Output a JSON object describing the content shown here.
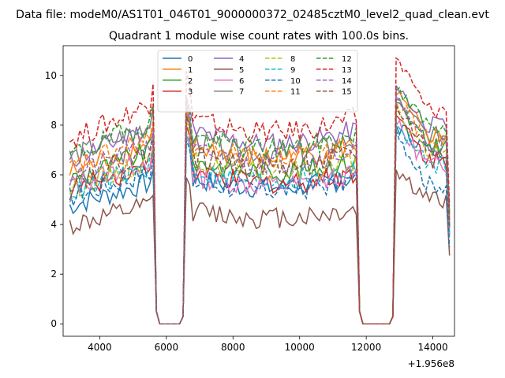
{
  "chart_data": {
    "type": "line",
    "suptitle": "Data file: modeM0/AS1T01_046T01_9000000372_02485cztM0_level2_quad_clean.evt",
    "title": "Quadrant 1 module wise count rates with 100.0s bins.",
    "xlabel": "",
    "ylabel": "",
    "x_offset_label": "+1.956e8",
    "xlim": [
      2900,
      14650
    ],
    "ylim": [
      -0.5,
      11.2
    ],
    "xticks": [
      4000,
      6000,
      8000,
      10000,
      12000,
      14000
    ],
    "xtick_labels": [
      "4000",
      "6000",
      "8000",
      "10000",
      "12000",
      "14000"
    ],
    "yticks": [
      0,
      2,
      4,
      6,
      8,
      10
    ],
    "ytick_labels": [
      "0",
      "2",
      "4",
      "6",
      "8",
      "10"
    ],
    "legend_position": "top-center",
    "legend_columns": 4,
    "x_start": 3100,
    "x_step": 100,
    "segments": [
      {
        "start": 3100,
        "end": 5600,
        "level": "on"
      },
      {
        "start": 5700,
        "end": 5700,
        "level": "drop"
      },
      {
        "start": 5800,
        "end": 6400,
        "level": "zero"
      },
      {
        "start": 6500,
        "end": 6500,
        "level": "rise"
      },
      {
        "start": 6600,
        "end": 11700,
        "level": "on"
      },
      {
        "start": 11800,
        "end": 11800,
        "level": "drop"
      },
      {
        "start": 11900,
        "end": 12700,
        "level": "zero"
      },
      {
        "start": 12800,
        "end": 12800,
        "level": "rise"
      },
      {
        "start": 12900,
        "end": 14400,
        "level": "on"
      },
      {
        "start": 14500,
        "end": 14500,
        "level": "end"
      }
    ],
    "series": [
      {
        "name": "0",
        "color": "#1f77b4",
        "dash": "solid",
        "level1": 5.4,
        "level2": 5.9,
        "level3": 7.0,
        "peak": 8.0
      },
      {
        "name": "1",
        "color": "#ff7f0e",
        "dash": "solid",
        "level1": 6.9,
        "level2": 7.2,
        "level3": 7.6,
        "peak": 9.2
      },
      {
        "name": "2",
        "color": "#2ca02c",
        "dash": "solid",
        "level1": 6.6,
        "level2": 6.6,
        "level3": 7.2,
        "peak": 8.9
      },
      {
        "name": "3",
        "color": "#d62728",
        "dash": "solid",
        "level1": 6.1,
        "level2": 6.1,
        "level3": 6.6,
        "peak": 8.4
      },
      {
        "name": "4",
        "color": "#9467bd",
        "dash": "solid",
        "level1": 7.5,
        "level2": 7.8,
        "level3": 8.0,
        "peak": 9.6
      },
      {
        "name": "5",
        "color": "#8c564b",
        "dash": "solid",
        "level1": 4.5,
        "level2": 4.6,
        "level3": 5.0,
        "peak": 6.2
      },
      {
        "name": "6",
        "color": "#e377c2",
        "dash": "solid",
        "level1": 6.3,
        "level2": 6.0,
        "level3": 6.4,
        "peak": 8.0
      },
      {
        "name": "7",
        "color": "#7f7f7f",
        "dash": "solid",
        "level1": 7.6,
        "level2": 7.4,
        "level3": 7.6,
        "peak": 9.0
      },
      {
        "name": "8",
        "color": "#bcbd22",
        "dash": "dashed",
        "level1": 6.2,
        "level2": 6.6,
        "level3": 6.8,
        "peak": 8.6
      },
      {
        "name": "9",
        "color": "#17becf",
        "dash": "dashed",
        "level1": 6.0,
        "level2": 6.2,
        "level3": 6.4,
        "peak": 8.1
      },
      {
        "name": "10",
        "color": "#1f77b4",
        "dash": "dashed",
        "level1": 5.8,
        "level2": 5.8,
        "level3": 5.6,
        "peak": 7.8
      },
      {
        "name": "11",
        "color": "#ff7f0e",
        "dash": "dashed",
        "level1": 7.1,
        "level2": 7.2,
        "level3": 7.4,
        "peak": 9.0
      },
      {
        "name": "12",
        "color": "#2ca02c",
        "dash": "dashed",
        "level1": 7.7,
        "level2": 7.6,
        "level3": 8.0,
        "peak": 9.4
      },
      {
        "name": "13",
        "color": "#d62728",
        "dash": "dashed",
        "level1": 8.4,
        "level2": 8.3,
        "level3": 8.6,
        "peak": 10.7
      },
      {
        "name": "14",
        "color": "#9467bd",
        "dash": "dashed",
        "level1": 6.8,
        "level2": 7.0,
        "level3": 7.2,
        "peak": 9.2
      },
      {
        "name": "15",
        "color": "#8c564b",
        "dash": "dashed",
        "level1": 6.5,
        "level2": 6.8,
        "level3": 7.0,
        "peak": 8.8
      }
    ]
  }
}
